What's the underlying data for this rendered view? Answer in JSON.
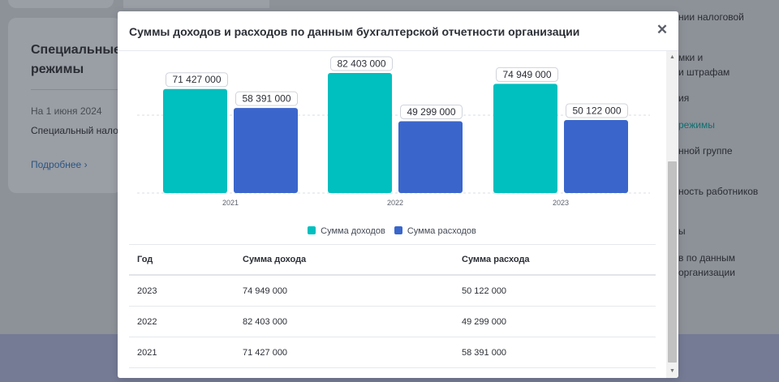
{
  "background": {
    "card": {
      "title": "Специальные режимы",
      "date": "На 1 июня 2024",
      "description": "Специальный налоговый режим не применяется",
      "more_link": "Подробнее"
    },
    "right_nav": [
      "нии налоговой",
      "мки и",
      "и штрафам",
      "ия",
      "режимы",
      "нной группе",
      "ность работников",
      "ы",
      "в по данным",
      "организации"
    ]
  },
  "modal": {
    "title": "Суммы доходов и расходов по данным бухгалтерской отчетности организации",
    "close_icon": "close-icon"
  },
  "chart_data": {
    "type": "bar",
    "categories": [
      "2021",
      "2022",
      "2023"
    ],
    "series": [
      {
        "name": "Сумма доходов",
        "values": [
          71427000,
          82403000,
          74949000
        ],
        "color": "#00bfbf"
      },
      {
        "name": "Сумма расходов",
        "values": [
          58391000,
          49299000,
          50122000
        ],
        "color": "#3a66cc"
      }
    ],
    "value_labels": {
      "income": [
        "71 427 000",
        "82 403 000",
        "74 949 000"
      ],
      "expense": [
        "58 391 000",
        "49 299 000",
        "50 122 000"
      ]
    },
    "grid": true,
    "legend_position": "bottom-center"
  },
  "table": {
    "headers": [
      "Год",
      "Сумма дохода",
      "Сумма расхода"
    ],
    "rows": [
      [
        "2023",
        "74 949 000",
        "50 122 000"
      ],
      [
        "2022",
        "82 403 000",
        "49 299 000"
      ],
      [
        "2021",
        "71 427 000",
        "58 391 000"
      ]
    ]
  },
  "colors": {
    "income": "#00bfbf",
    "expense": "#3a66cc"
  }
}
